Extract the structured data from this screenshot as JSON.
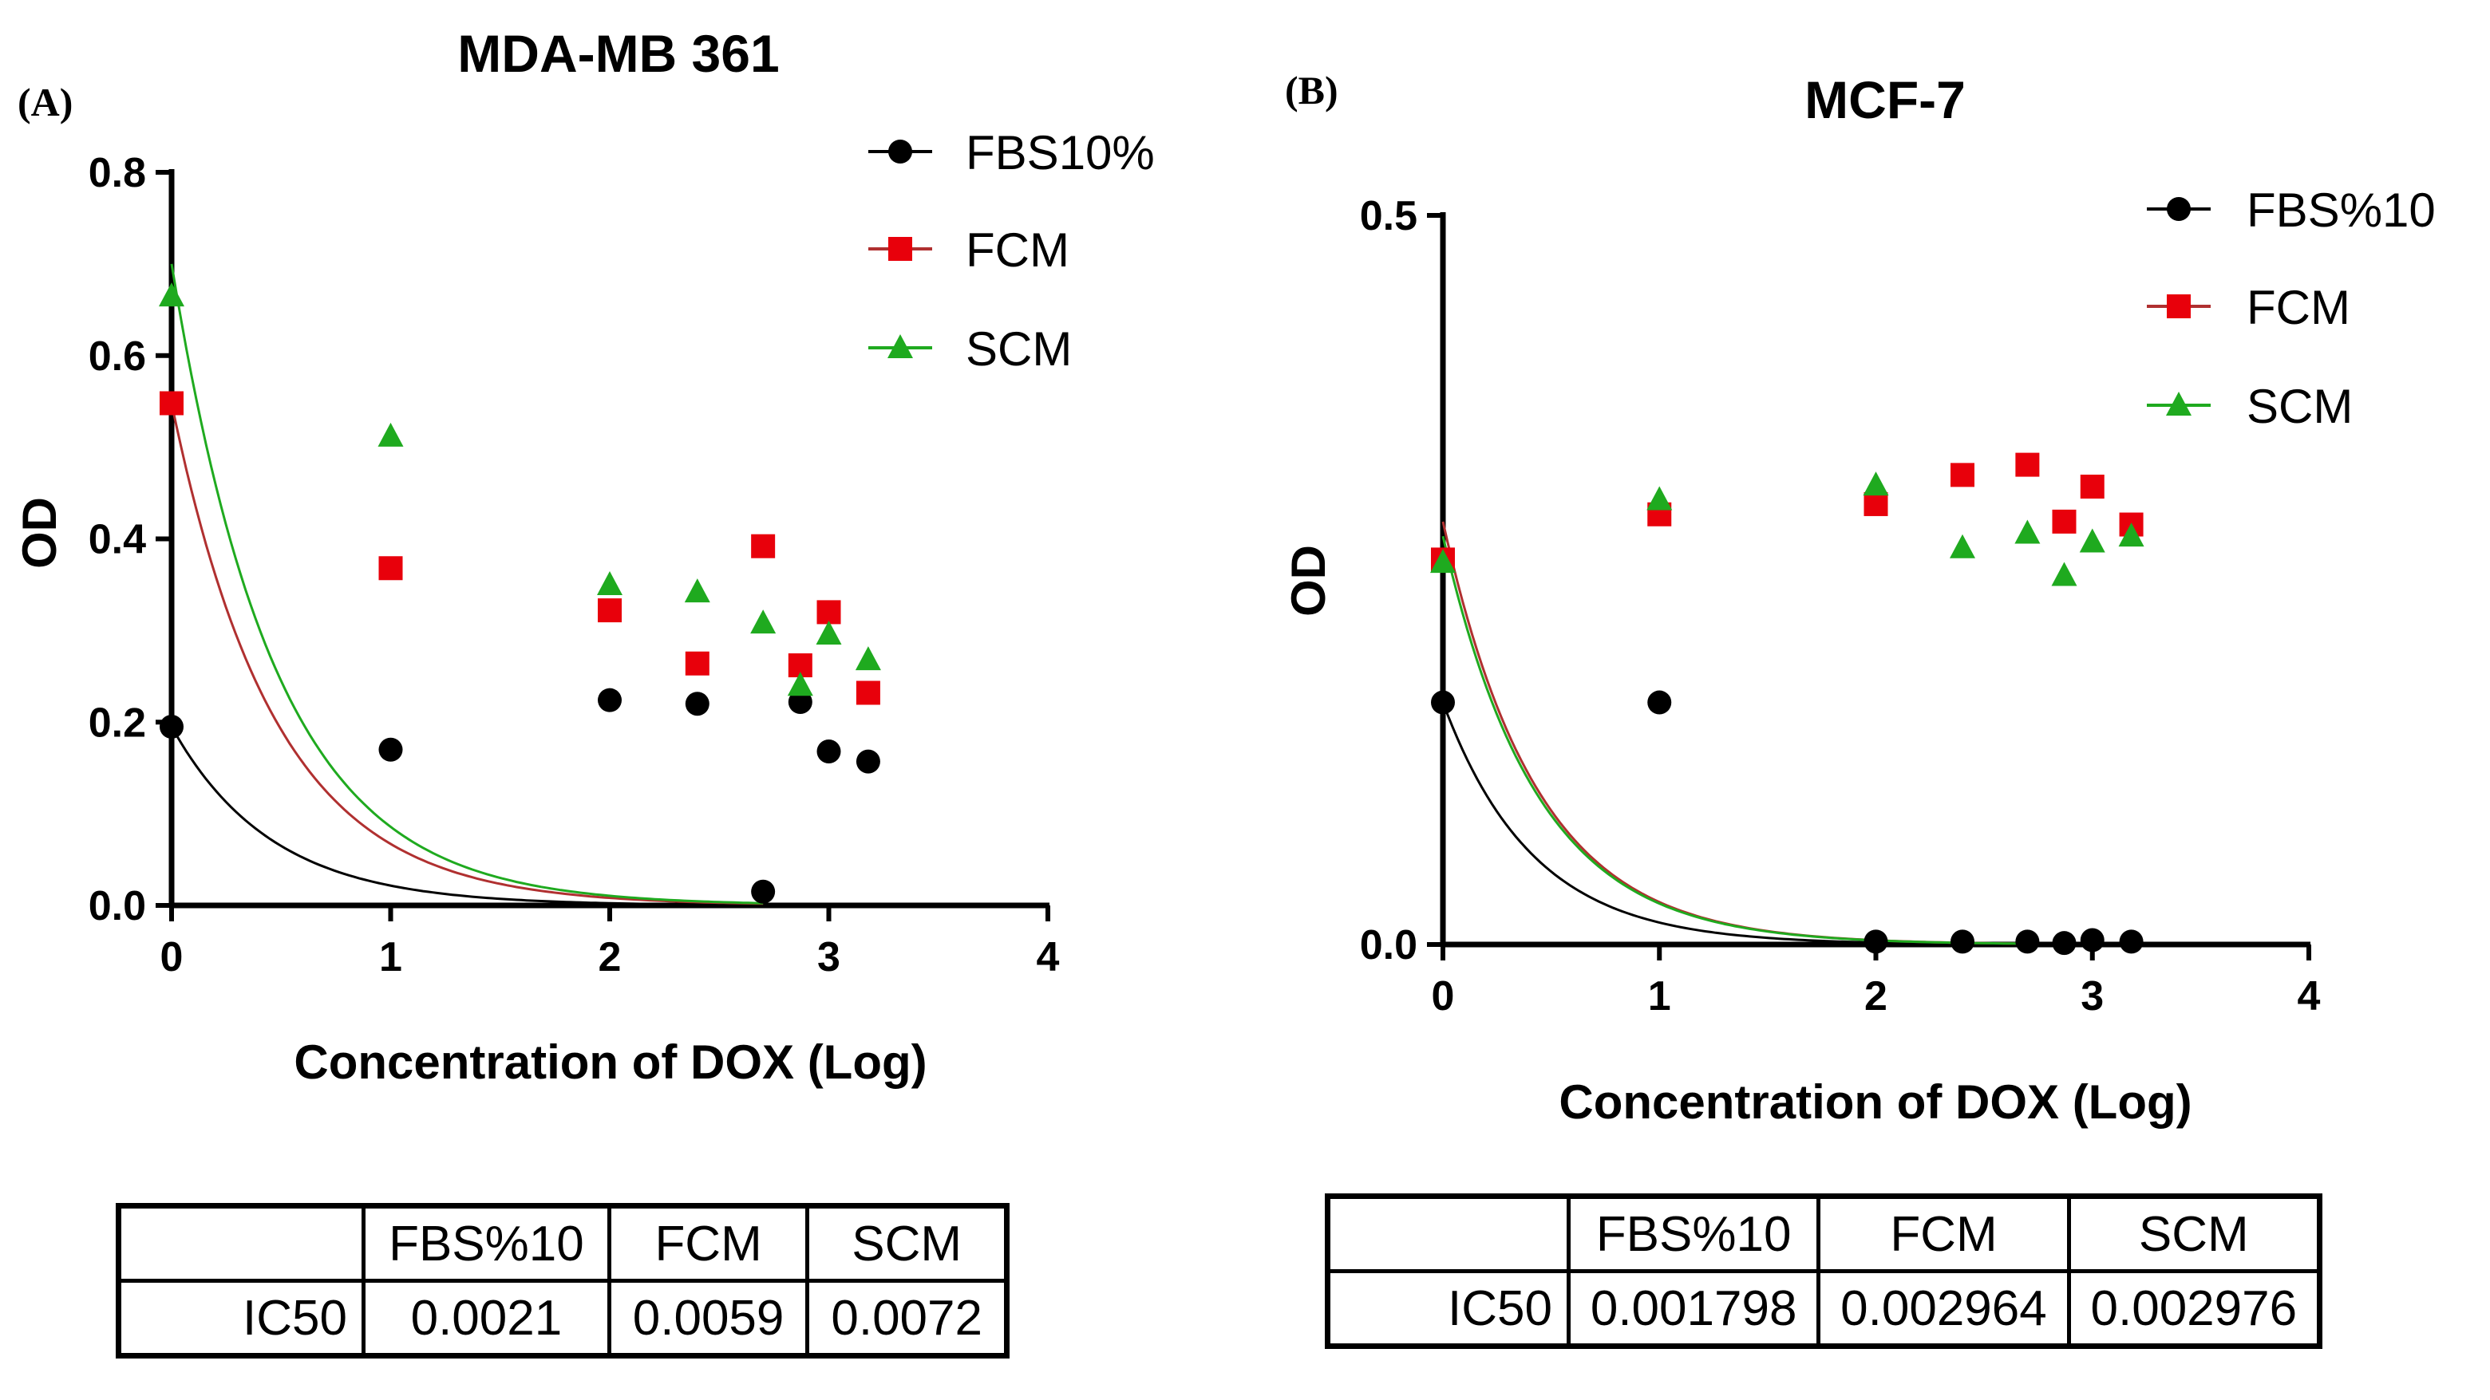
{
  "chart_data": [
    {
      "type": "scatter",
      "panel_label": "(A)",
      "title": "MDA-MB 361",
      "xlabel": "Concentration of DOX (Log)",
      "ylabel": "OD",
      "xlim": [
        0,
        4
      ],
      "ylim": [
        0,
        0.8
      ],
      "xticks": [
        "0",
        "1",
        "2",
        "3",
        "4"
      ],
      "yticks": [
        "0.0",
        "0.2",
        "0.4",
        "0.6",
        "0.8"
      ],
      "yticks_values": [
        0,
        0.2,
        0.4,
        0.6,
        0.8
      ],
      "legend_position": "top-right",
      "series": [
        {
          "name": "FBS10%",
          "marker": "circle",
          "color": "#000000",
          "line_color": "#000000",
          "x": [
            0,
            1,
            2,
            2.4,
            2.7,
            2.87,
            3,
            3.18
          ],
          "y": [
            0.195,
            0.17,
            0.224,
            0.22,
            0.015,
            0.222,
            0.168,
            0.157
          ],
          "fit": {
            "top": 0.195,
            "decay": 2.2
          }
        },
        {
          "name": "FCM",
          "marker": "square",
          "color": "#e8000b",
          "line_color": "#b03030",
          "x": [
            0,
            1,
            2,
            2.4,
            2.7,
            2.87,
            3,
            3.18
          ],
          "y": [
            0.548,
            0.368,
            0.322,
            0.264,
            0.392,
            0.262,
            0.32,
            0.232
          ],
          "fit": {
            "top": 0.548,
            "decay": 2.1
          }
        },
        {
          "name": "SCM",
          "marker": "triangle",
          "color": "#1faa1f",
          "line_color": "#1faa1f",
          "x": [
            0,
            1,
            2,
            2.4,
            2.7,
            2.87,
            3,
            3.18
          ],
          "y": [
            0.665,
            0.512,
            0.35,
            0.342,
            0.308,
            0.24,
            0.296,
            0.268
          ],
          "fit": {
            "top": 0.7,
            "decay": 2.1
          }
        }
      ],
      "table": {
        "headers": [
          "",
          "FBS%10",
          "FCM",
          "SCM"
        ],
        "row_label": "IC50",
        "values": [
          "0.0021",
          "0.0059",
          "0.0072"
        ]
      }
    },
    {
      "type": "scatter",
      "panel_label": "(B)",
      "title": "MCF-7",
      "xlabel": "Concentration of DOX (Log)",
      "ylabel": "OD",
      "xlim": [
        0,
        4
      ],
      "ylim": [
        0,
        0.5
      ],
      "xticks": [
        "0",
        "1",
        "2",
        "3",
        "4"
      ],
      "yticks": [
        "0.0",
        "0.5"
      ],
      "yticks_values": [
        0,
        0.5
      ],
      "legend_position": "top-right",
      "series": [
        {
          "name": "FBS%10",
          "marker": "circle",
          "color": "#000000",
          "line_color": "#000000",
          "x": [
            0,
            1,
            2,
            2.4,
            2.7,
            2.87,
            3,
            3.18
          ],
          "y": [
            0.166,
            0.166,
            0.002,
            0.002,
            0.002,
            0.001,
            0.003,
            0.002
          ],
          "fit": {
            "top": 0.166,
            "decay": 2.4
          }
        },
        {
          "name": "FCM",
          "marker": "square",
          "color": "#e8000b",
          "line_color": "#b03030",
          "x": [
            0,
            1,
            2,
            2.4,
            2.7,
            2.87,
            3,
            3.18
          ],
          "y": [
            0.264,
            0.295,
            0.302,
            0.322,
            0.329,
            0.29,
            0.314,
            0.288
          ],
          "fit": {
            "top": 0.29,
            "decay": 2.3
          }
        },
        {
          "name": "SCM",
          "marker": "triangle",
          "color": "#1faa1f",
          "line_color": "#1faa1f",
          "x": [
            0,
            1,
            2,
            2.4,
            2.7,
            2.87,
            3,
            3.18
          ],
          "y": [
            0.262,
            0.305,
            0.315,
            0.272,
            0.282,
            0.253,
            0.276,
            0.28
          ],
          "fit": {
            "top": 0.28,
            "decay": 2.3
          }
        }
      ],
      "table": {
        "headers": [
          "",
          "FBS%10",
          "FCM",
          "SCM"
        ],
        "row_label": "IC50",
        "values": [
          "0.001798",
          "0.002964",
          "0.002976"
        ]
      }
    }
  ]
}
